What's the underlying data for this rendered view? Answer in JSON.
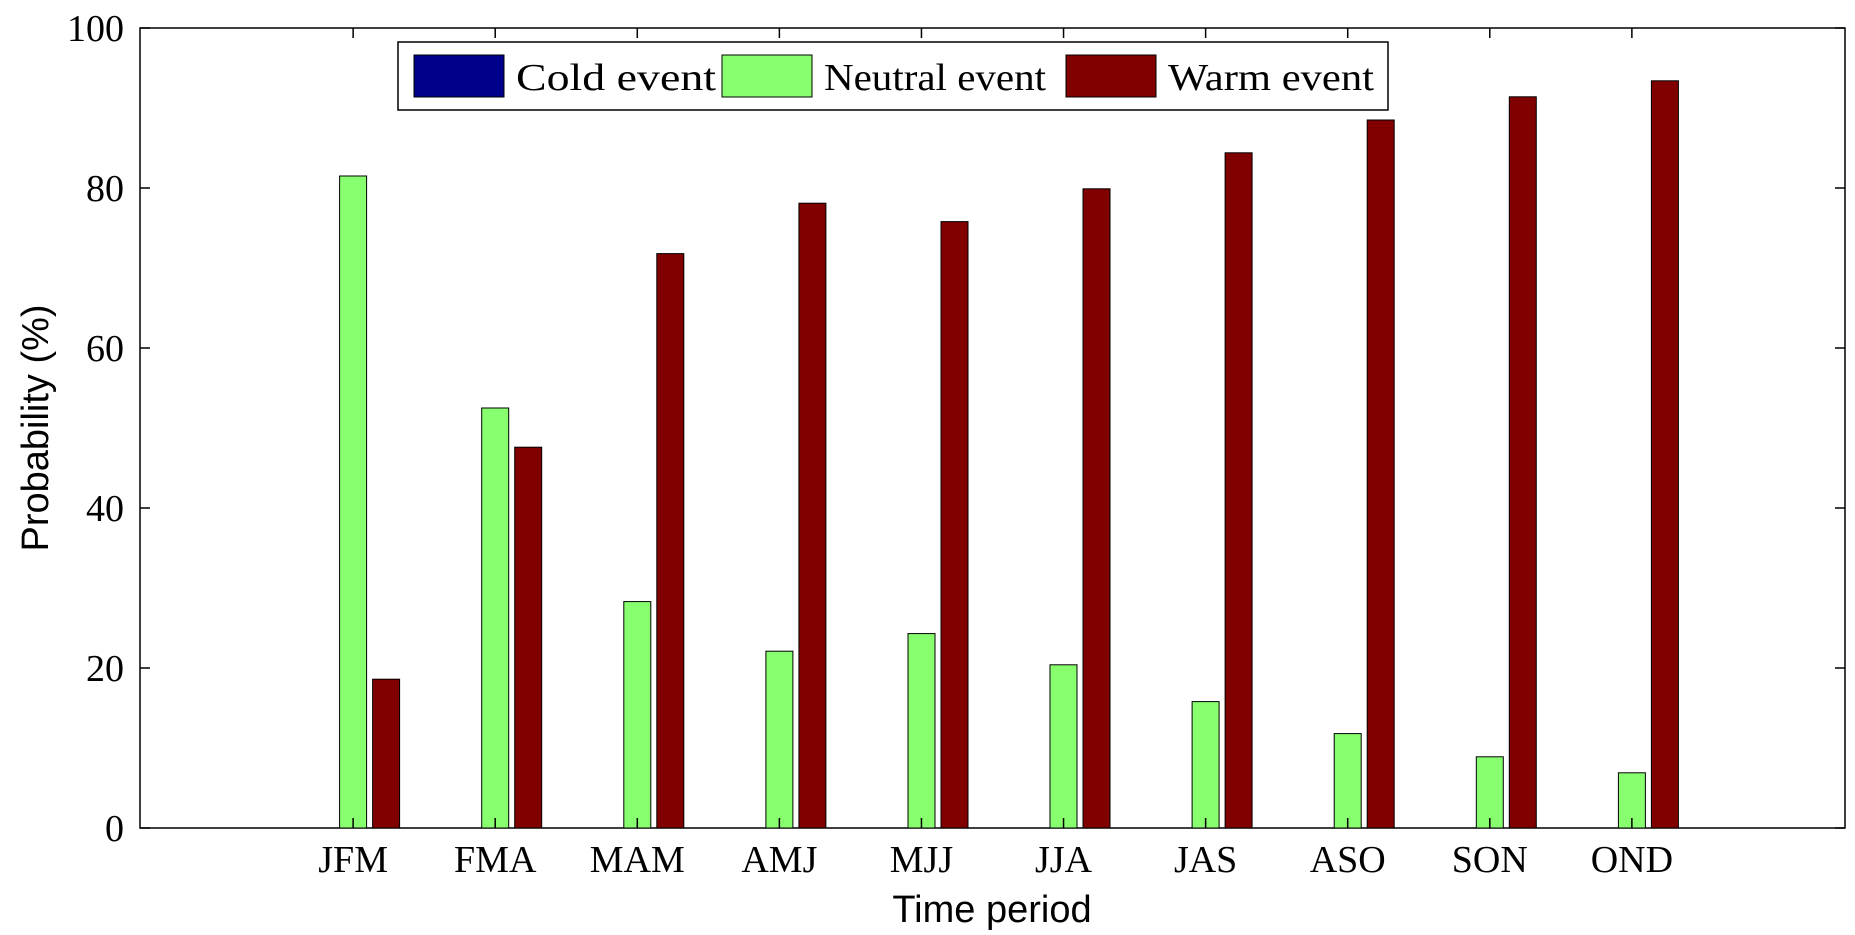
{
  "chart_data": {
    "type": "bar",
    "title": "",
    "xlabel": "Time period",
    "ylabel": "Probability (%)",
    "ylim": [
      0,
      100
    ],
    "yticks": [
      0,
      20,
      40,
      60,
      80,
      100
    ],
    "grid": false,
    "legend_position": "top-center",
    "categories": [
      "JFM",
      "FMA",
      "MAM",
      "AMJ",
      "MJJ",
      "JJA",
      "JAS",
      "ASO",
      "SON",
      "OND"
    ],
    "series": [
      {
        "name": "Cold event",
        "color": "#00008b",
        "values": [
          0,
          0,
          0,
          0,
          0,
          0,
          0,
          0,
          0,
          0
        ]
      },
      {
        "name": "Neutral event",
        "color": "#88ff6e",
        "values": [
          81.5,
          52.5,
          28.3,
          22.1,
          24.3,
          20.4,
          15.8,
          11.8,
          8.9,
          6.9
        ]
      },
      {
        "name": "Warm event",
        "color": "#800000",
        "values": [
          18.6,
          47.6,
          71.8,
          78.1,
          75.8,
          79.9,
          84.4,
          88.5,
          91.4,
          93.4
        ]
      }
    ]
  }
}
